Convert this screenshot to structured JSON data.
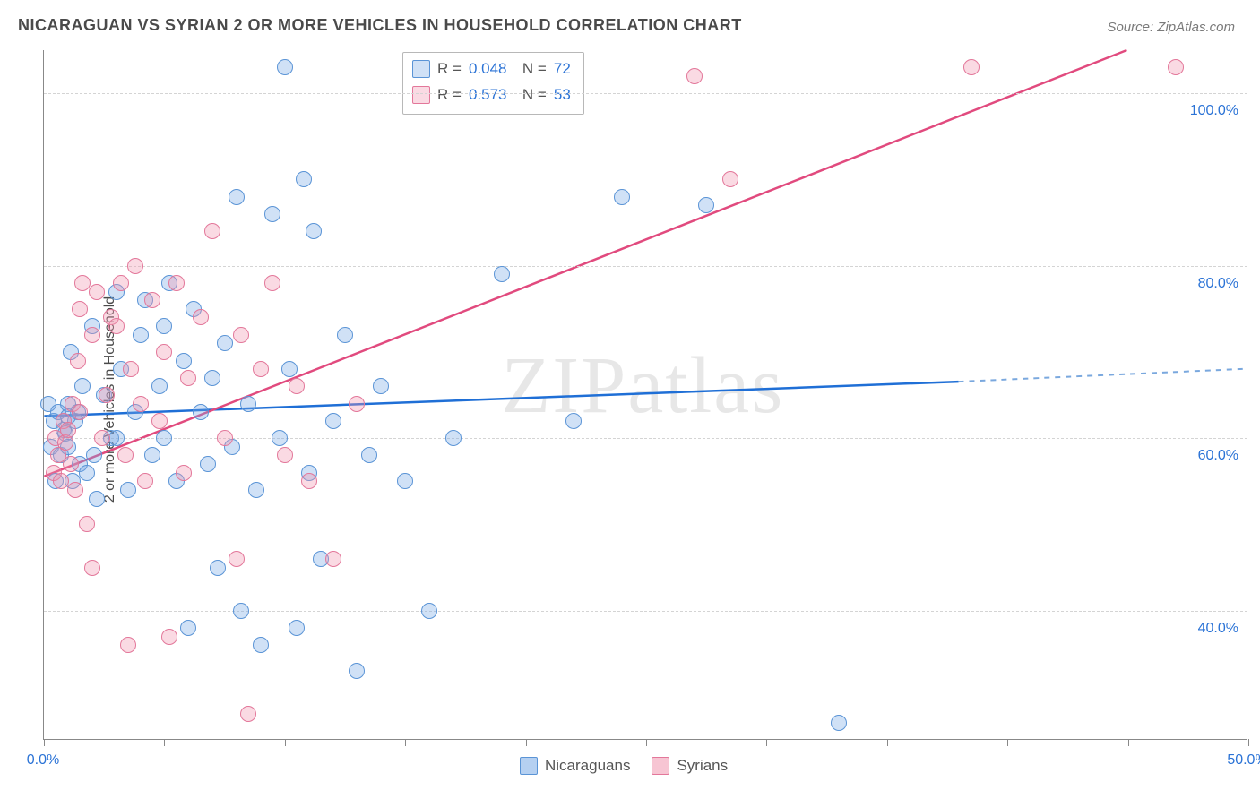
{
  "title": "NICARAGUAN VS SYRIAN 2 OR MORE VEHICLES IN HOUSEHOLD CORRELATION CHART",
  "source": "Source: ZipAtlas.com",
  "ylabel": "2 or more Vehicles in Household",
  "watermark": "ZIPatlas",
  "chart": {
    "type": "scatter",
    "xlim": [
      0,
      50
    ],
    "ylim": [
      25,
      105
    ],
    "x_ticks": [
      0,
      5,
      10,
      15,
      20,
      25,
      30,
      35,
      40,
      45,
      50
    ],
    "x_tick_labels": {
      "0": "0.0%",
      "50": "50.0%"
    },
    "y_grid": [
      40,
      60,
      80,
      100
    ],
    "y_tick_labels": {
      "40": "40.0%",
      "60": "60.0%",
      "80": "80.0%",
      "100": "100.0%"
    },
    "tick_label_color": "#2b73d6",
    "grid_color": "#d4d4d4",
    "background_color": "#ffffff",
    "marker_radius": 9,
    "marker_border_width": 1.5,
    "series": [
      {
        "name": "Nicaraguans",
        "fill": "rgba(120,170,230,0.35)",
        "stroke": "#5a94d6",
        "line_color": "#1f6fd6",
        "line_dash_color": "#7aa8de",
        "legend": {
          "R": "0.048",
          "N": "72"
        },
        "trend": {
          "x1": 0,
          "y1": 62.5,
          "x2_solid": 38,
          "y2_solid": 66.5,
          "x2": 50,
          "y2": 68
        },
        "points": [
          [
            0.2,
            64
          ],
          [
            0.3,
            59
          ],
          [
            0.4,
            62
          ],
          [
            0.5,
            55
          ],
          [
            0.6,
            63
          ],
          [
            0.7,
            58
          ],
          [
            0.8,
            61
          ],
          [
            0.9,
            60.5
          ],
          [
            1.0,
            59
          ],
          [
            1.0,
            64
          ],
          [
            1.1,
            70
          ],
          [
            1.2,
            55
          ],
          [
            1.3,
            62
          ],
          [
            1.4,
            63
          ],
          [
            1.5,
            57
          ],
          [
            1.6,
            66
          ],
          [
            1.8,
            56
          ],
          [
            2.0,
            73
          ],
          [
            2.1,
            58
          ],
          [
            2.2,
            53
          ],
          [
            2.5,
            65
          ],
          [
            2.8,
            60
          ],
          [
            3.0,
            77
          ],
          [
            3.2,
            68
          ],
          [
            3.5,
            54
          ],
          [
            3.8,
            63
          ],
          [
            4.0,
            72
          ],
          [
            4.2,
            76
          ],
          [
            4.5,
            58
          ],
          [
            4.8,
            66
          ],
          [
            5.0,
            60
          ],
          [
            5.2,
            78
          ],
          [
            5.5,
            55
          ],
          [
            5.8,
            69
          ],
          [
            6.0,
            38
          ],
          [
            6.2,
            75
          ],
          [
            6.5,
            63
          ],
          [
            6.8,
            57
          ],
          [
            7.0,
            67
          ],
          [
            7.2,
            45
          ],
          [
            7.5,
            71
          ],
          [
            7.8,
            59
          ],
          [
            8.0,
            88
          ],
          [
            8.2,
            40
          ],
          [
            8.5,
            64
          ],
          [
            8.8,
            54
          ],
          [
            9.0,
            36
          ],
          [
            9.5,
            86
          ],
          [
            9.8,
            60
          ],
          [
            10.0,
            103
          ],
          [
            10.2,
            68
          ],
          [
            10.5,
            38
          ],
          [
            10.8,
            90
          ],
          [
            11.0,
            56
          ],
          [
            11.2,
            84
          ],
          [
            11.5,
            46
          ],
          [
            12.0,
            62
          ],
          [
            12.5,
            72
          ],
          [
            13.0,
            33
          ],
          [
            13.5,
            58
          ],
          [
            14.0,
            66
          ],
          [
            15.0,
            55
          ],
          [
            16.0,
            40
          ],
          [
            17.0,
            60
          ],
          [
            19.0,
            79
          ],
          [
            22.0,
            62
          ],
          [
            24.0,
            88
          ],
          [
            27.5,
            87
          ],
          [
            33.0,
            27
          ],
          [
            1.0,
            62.5
          ],
          [
            3.0,
            60
          ],
          [
            5.0,
            73
          ]
        ]
      },
      {
        "name": "Syrians",
        "fill": "rgba(240,150,175,0.35)",
        "stroke": "#e3779a",
        "line_color": "#e14a7e",
        "line_dash_color": "#e898b4",
        "legend": {
          "R": "0.573",
          "N": "53"
        },
        "trend": {
          "x1": 0,
          "y1": 55.5,
          "x2_solid": 45,
          "y2_solid": 105,
          "x2": 45,
          "y2": 105
        },
        "points": [
          [
            0.4,
            56
          ],
          [
            0.5,
            60
          ],
          [
            0.6,
            58
          ],
          [
            0.7,
            55
          ],
          [
            0.8,
            62
          ],
          [
            0.9,
            59.5
          ],
          [
            1.0,
            61
          ],
          [
            1.1,
            57
          ],
          [
            1.2,
            64
          ],
          [
            1.3,
            54
          ],
          [
            1.4,
            69
          ],
          [
            1.5,
            63
          ],
          [
            1.6,
            78
          ],
          [
            1.8,
            50
          ],
          [
            2.0,
            72
          ],
          [
            2.2,
            77
          ],
          [
            2.4,
            60
          ],
          [
            2.6,
            65
          ],
          [
            2.8,
            74
          ],
          [
            3.0,
            73
          ],
          [
            3.2,
            78
          ],
          [
            3.4,
            58
          ],
          [
            3.6,
            68
          ],
          [
            3.8,
            80
          ],
          [
            4.0,
            64
          ],
          [
            4.2,
            55
          ],
          [
            4.5,
            76
          ],
          [
            4.8,
            62
          ],
          [
            5.0,
            70
          ],
          [
            5.2,
            37
          ],
          [
            5.5,
            78
          ],
          [
            5.8,
            56
          ],
          [
            6.0,
            67
          ],
          [
            6.5,
            74
          ],
          [
            7.0,
            84
          ],
          [
            7.5,
            60
          ],
          [
            8.0,
            46
          ],
          [
            8.2,
            72
          ],
          [
            8.5,
            28
          ],
          [
            9.0,
            68
          ],
          [
            9.5,
            78
          ],
          [
            10.0,
            58
          ],
          [
            10.5,
            66
          ],
          [
            11.0,
            55
          ],
          [
            12.0,
            46
          ],
          [
            13.0,
            64
          ],
          [
            2.0,
            45
          ],
          [
            3.5,
            36
          ],
          [
            27.0,
            102
          ],
          [
            28.5,
            90
          ],
          [
            38.5,
            103
          ],
          [
            47.0,
            103
          ],
          [
            1.5,
            75
          ]
        ]
      }
    ]
  },
  "legend_bottom": [
    {
      "label": "Nicaraguans",
      "fill": "rgba(120,170,230,0.55)",
      "stroke": "#5a94d6"
    },
    {
      "label": "Syrians",
      "fill": "rgba(240,150,175,0.55)",
      "stroke": "#e3779a"
    }
  ]
}
